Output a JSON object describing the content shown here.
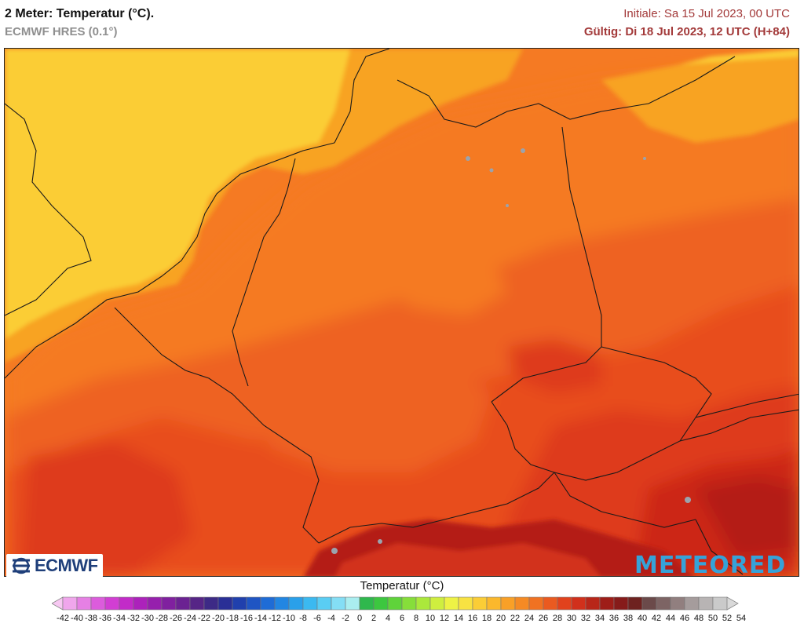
{
  "header": {
    "title": "2 Meter: Temperatur (°C).",
    "model": "ECMWF HRES (0.1°)",
    "initial": "Initiale: Sa 15 Jul 2023, 00 UTC",
    "valid": "Gültig: Di 18 Jul 2023, 12 UTC (H+84)"
  },
  "logos": {
    "left": "ECMWF",
    "right": "METEORED"
  },
  "colorbar": {
    "title": "Temperatur (°C)",
    "ticks": [
      "-42",
      "-40",
      "-38",
      "-36",
      "-34",
      "-32",
      "-30",
      "-28",
      "-26",
      "-24",
      "-22",
      "-20",
      "-18",
      "-16",
      "-14",
      "-12",
      "-10",
      "-8",
      "-6",
      "-4",
      "-2",
      "0",
      "2",
      "4",
      "6",
      "8",
      "10",
      "12",
      "14",
      "16",
      "18",
      "20",
      "22",
      "24",
      "26",
      "28",
      "30",
      "32",
      "34",
      "36",
      "38",
      "40",
      "42",
      "44",
      "46",
      "48",
      "50",
      "52",
      "54"
    ],
    "colors": [
      "#f7c8f2",
      "#f0a6ec",
      "#e680e4",
      "#dc5cdc",
      "#d23ed3",
      "#c22bc8",
      "#ac22bb",
      "#9620ad",
      "#80209f",
      "#6b2292",
      "#562586",
      "#3d2a86",
      "#2a2f96",
      "#2040ad",
      "#1f55c3",
      "#1f6cd6",
      "#2286e2",
      "#2aa0ea",
      "#3bb9f0",
      "#5acdf3",
      "#84def5",
      "#aaeef0",
      "#2fb84d",
      "#3cc73f",
      "#5fd33a",
      "#86de3a",
      "#abe83b",
      "#cfee3f",
      "#eef245",
      "#f8e242",
      "#fbcd36",
      "#fbb82c",
      "#f9a027",
      "#f58a24",
      "#f07222",
      "#ea5a20",
      "#e1421d",
      "#d1301b",
      "#b82619",
      "#9e1d18",
      "#861b1a",
      "#6e2220",
      "#6b4a4a",
      "#7d6464",
      "#917f7f",
      "#a59c9c",
      "#b8b4b4",
      "#cacaca",
      "#d9d9d9"
    ]
  },
  "map": {
    "colors": {
      "t18": "#fbcd36",
      "t20": "#f8a324",
      "t24": "#f57a23",
      "t26": "#ee6222",
      "t28": "#e84d1f",
      "t30": "#de3a1d",
      "t32": "#cc2719",
      "t34": "#b41f17",
      "water": "#9ba3ad",
      "border": "#1a1a1a"
    }
  }
}
